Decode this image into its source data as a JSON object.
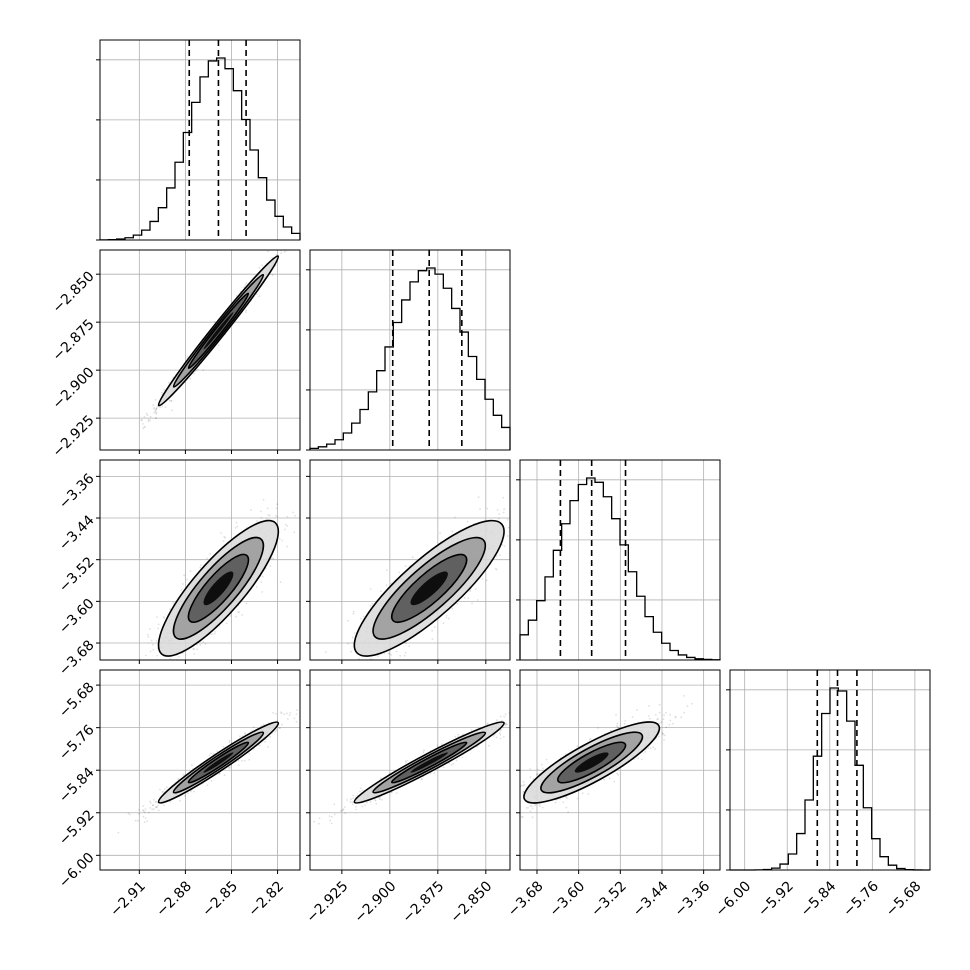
{
  "chart_data": {
    "type": "corner",
    "grid": true,
    "parameters": [
      {
        "center": -2.8585,
        "sigma": 0.0195,
        "q16": -2.8775,
        "q50": -2.8585,
        "q84": -2.8405,
        "range": [
          -2.9356,
          -2.8054
        ],
        "ticks": [
          -2.91,
          -2.88,
          -2.85,
          -2.82
        ],
        "tick_labels": [
          "−2.91",
          "−2.88",
          "−2.85",
          "−2.82"
        ]
      },
      {
        "center": -2.8795,
        "sigma": 0.0195,
        "q16": -2.8985,
        "q50": -2.8795,
        "q84": -2.8625,
        "range": [
          -2.9416,
          -2.8374
        ],
        "ticks": [
          -2.925,
          -2.9,
          -2.875,
          -2.85
        ],
        "tick_labels": [
          "−2.925",
          "−2.900",
          "−2.875",
          "−2.850"
        ]
      },
      {
        "center": -3.575,
        "sigma": 0.065,
        "q16": -3.635,
        "q50": -3.575,
        "q84": -3.51,
        "range": [
          -3.7126,
          -3.3286
        ],
        "ticks": [
          -3.68,
          -3.6,
          -3.52,
          -3.44,
          -3.36
        ],
        "tick_labels": [
          "−3.68",
          "−3.60",
          "−3.52",
          "−3.44",
          "−3.36"
        ]
      },
      {
        "center": -5.8255,
        "sigma": 0.038,
        "q16": -5.8635,
        "q50": -5.8255,
        "q84": -5.789,
        "range": [
          -6.0276,
          -5.6516
        ],
        "ticks": [
          -6.0,
          -5.92,
          -5.84,
          -5.76,
          -5.68
        ],
        "tick_labels": [
          "−6.00",
          "−5.92",
          "−5.84",
          "−5.76",
          "−5.68"
        ]
      }
    ],
    "correlations": {
      "1-0": 0.99,
      "2-0": 0.84,
      "2-1": 0.84,
      "3-0": 0.97,
      "3-1": 0.97,
      "3-2": 0.85
    },
    "contour_levels_sigma": [
      0.5,
      1.0,
      1.5,
      2.0
    ]
  }
}
